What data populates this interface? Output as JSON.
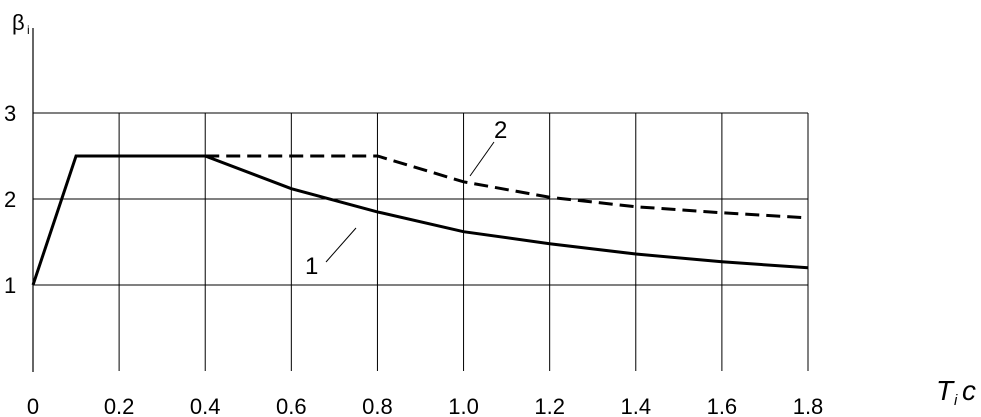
{
  "chart_data": {
    "type": "line",
    "ylabel": "β",
    "ylabel_subscript": "i",
    "xlabel": "T",
    "xlabel_subscript": "i",
    "xlabel_unit": "c",
    "xlim": [
      0,
      1.8
    ],
    "ylim": [
      0,
      3
    ],
    "xticks": [
      0,
      0.2,
      0.4,
      0.6,
      0.8,
      {
        "value": 1,
        "label": "1.0"
      },
      1.2,
      1.4,
      1.6,
      1.8
    ],
    "yticks": [
      1,
      2,
      3
    ],
    "grid": true,
    "series": [
      {
        "name": "1",
        "color": "#000000",
        "dash": false,
        "x": [
          0,
          0.1,
          0.4,
          0.6,
          0.8,
          1.0,
          1.2,
          1.4,
          1.6,
          1.8
        ],
        "values": [
          1,
          2.5,
          2.5,
          2.12,
          1.85,
          1.62,
          1.48,
          1.36,
          1.27,
          1.2
        ]
      },
      {
        "name": "2",
        "color": "#000000",
        "dash": true,
        "x": [
          0.4,
          0.8,
          1.0,
          1.2,
          1.4,
          1.6,
          1.8
        ],
        "values": [
          2.5,
          2.5,
          2.2,
          2.02,
          1.91,
          1.84,
          1.78
        ]
      }
    ]
  }
}
